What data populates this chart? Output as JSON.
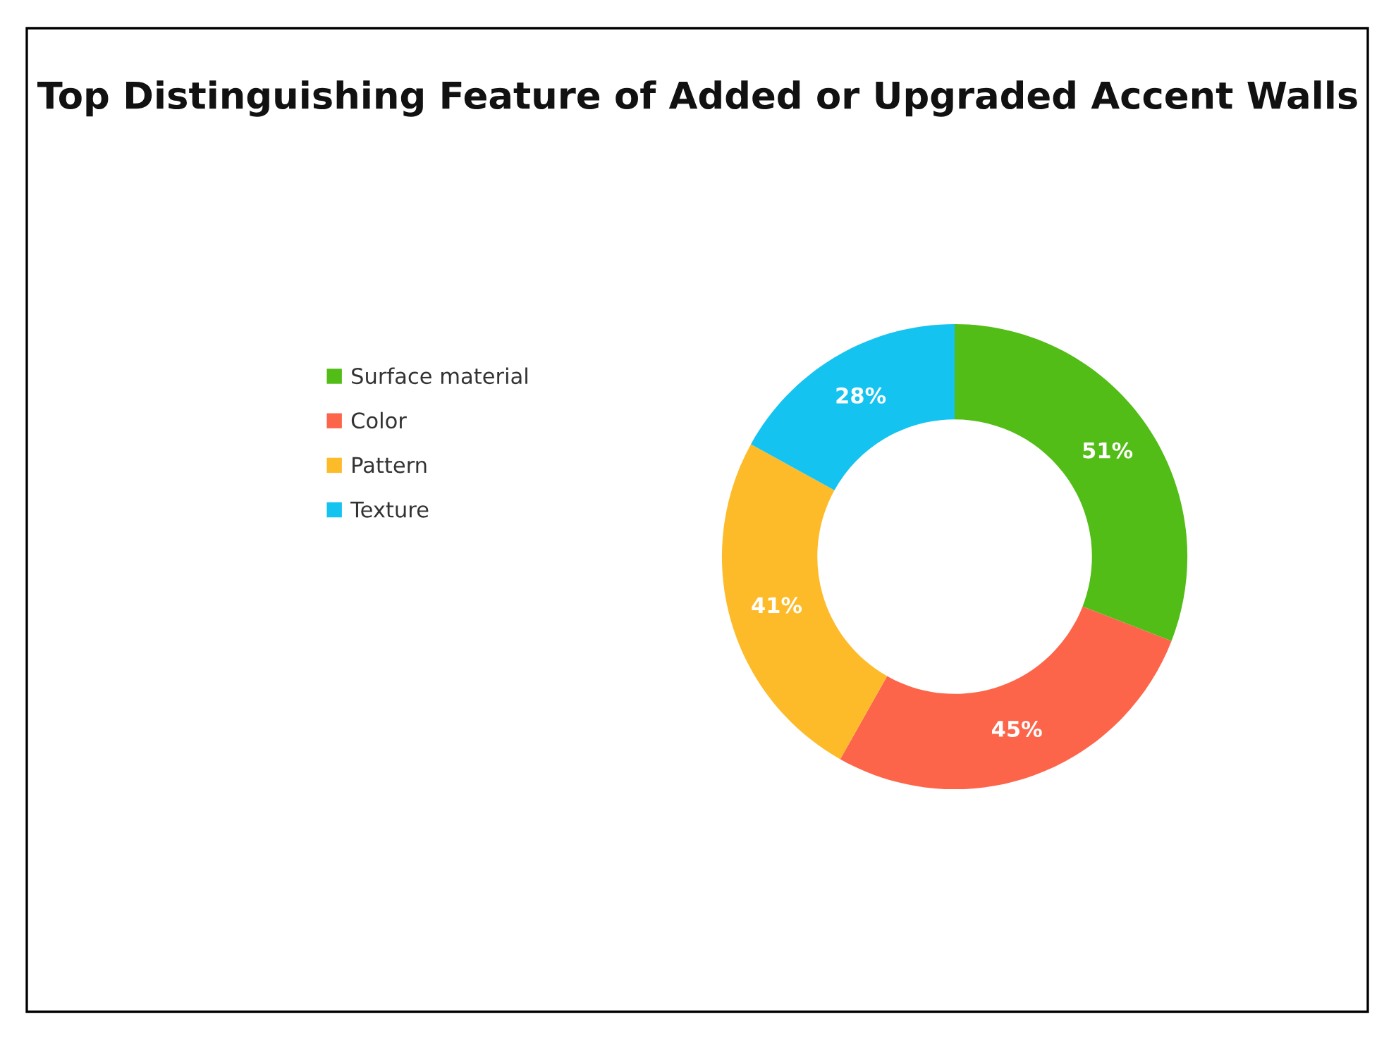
{
  "chart_data": {
    "type": "donut",
    "title": "Top Distinguishing Feature of Added or Upgraded Accent Walls",
    "categories": [
      "Surface material",
      "Color",
      "Pattern",
      "Texture"
    ],
    "values": [
      51,
      45,
      41,
      28
    ],
    "colors": [
      "#52bd16",
      "#fd654a",
      "#fdbb2a",
      "#14c3ef"
    ],
    "value_labels": [
      "51%",
      "45%",
      "41%",
      "28%"
    ],
    "legend": "left"
  }
}
